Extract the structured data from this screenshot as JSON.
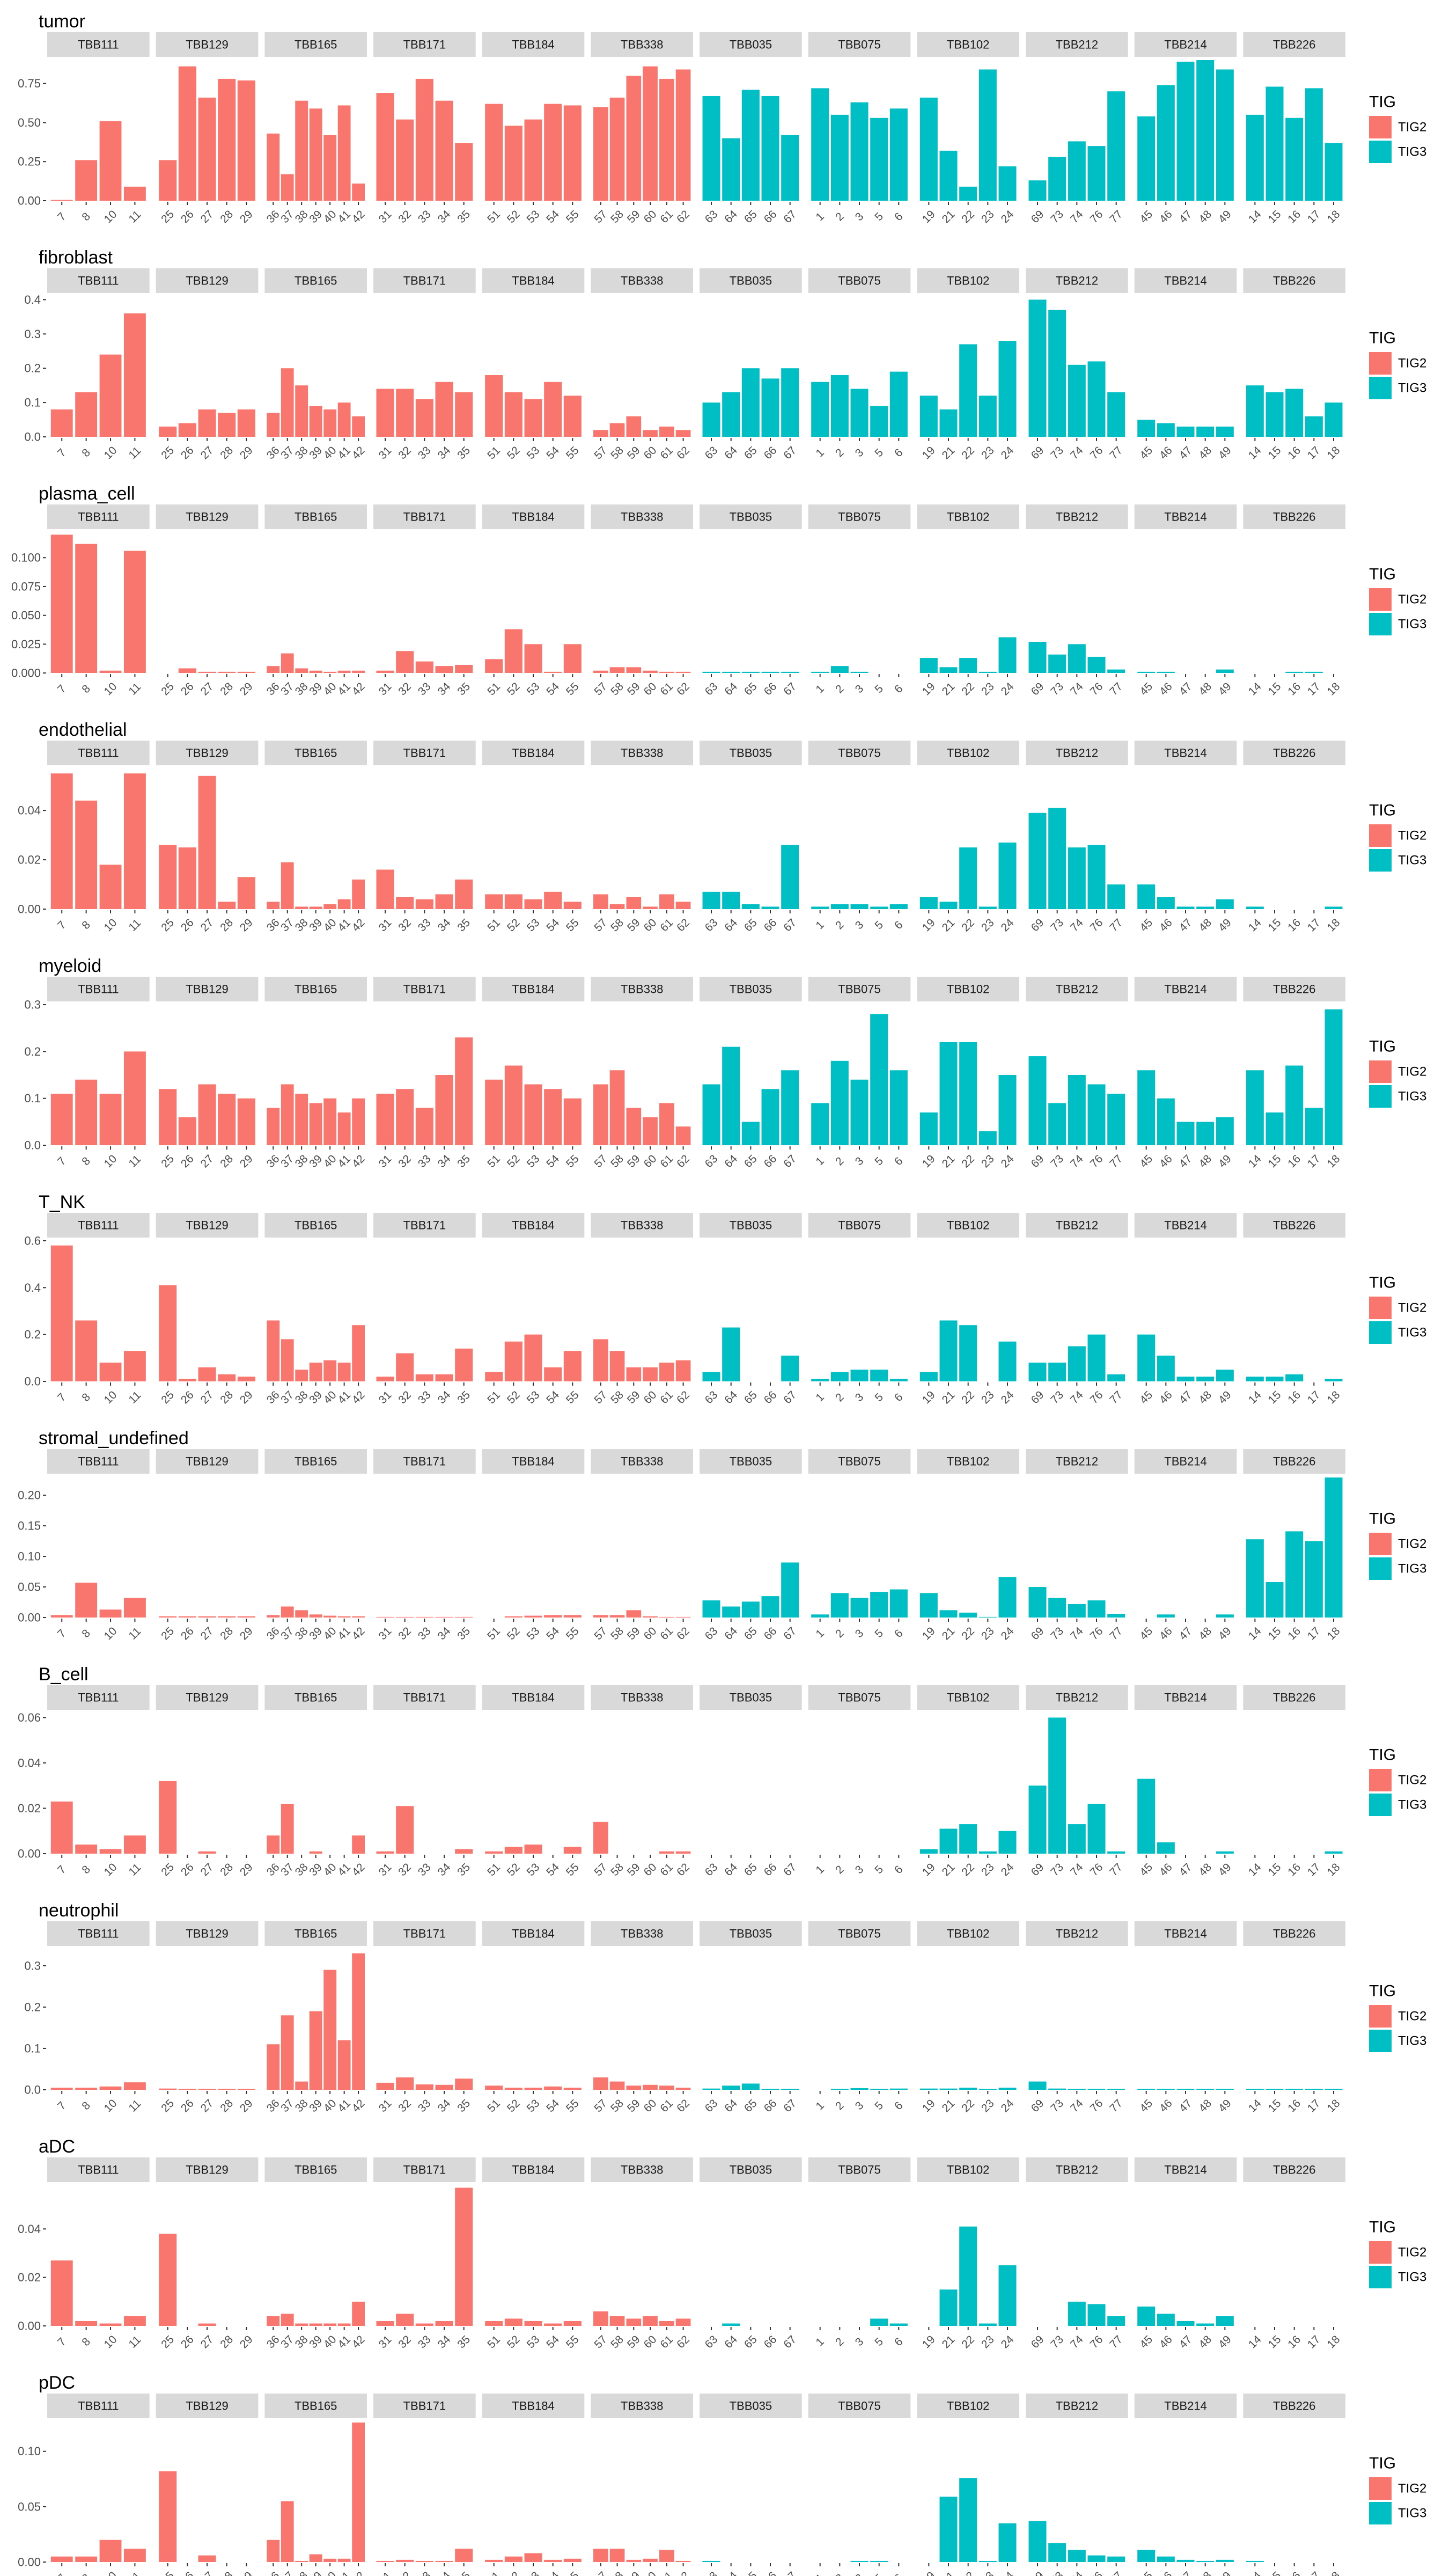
{
  "legend": {
    "title": "TIG",
    "items": [
      {
        "label": "TIG2",
        "color": "#F8766D"
      },
      {
        "label": "TIG3",
        "color": "#00BFC4"
      }
    ]
  },
  "panels": [
    {
      "name": "TBB111",
      "group": "TIG2",
      "x": [
        "7",
        "8",
        "10",
        "11"
      ]
    },
    {
      "name": "TBB129",
      "group": "TIG2",
      "x": [
        "25",
        "26",
        "27",
        "28",
        "29"
      ]
    },
    {
      "name": "TBB165",
      "group": "TIG2",
      "x": [
        "36",
        "37",
        "38",
        "39",
        "40",
        "41",
        "42"
      ]
    },
    {
      "name": "TBB171",
      "group": "TIG2",
      "x": [
        "31",
        "32",
        "33",
        "34",
        "35"
      ]
    },
    {
      "name": "TBB184",
      "group": "TIG2",
      "x": [
        "51",
        "52",
        "53",
        "54",
        "55"
      ]
    },
    {
      "name": "TBB338",
      "group": "TIG2",
      "x": [
        "57",
        "58",
        "59",
        "60",
        "61",
        "62"
      ]
    },
    {
      "name": "TBB035",
      "group": "TIG3",
      "x": [
        "63",
        "64",
        "65",
        "66",
        "67"
      ]
    },
    {
      "name": "TBB075",
      "group": "TIG3",
      "x": [
        "1",
        "2",
        "3",
        "5",
        "6"
      ]
    },
    {
      "name": "TBB102",
      "group": "TIG3",
      "x": [
        "19",
        "21",
        "22",
        "23",
        "24"
      ]
    },
    {
      "name": "TBB212",
      "group": "TIG3",
      "x": [
        "69",
        "73",
        "74",
        "76",
        "77"
      ]
    },
    {
      "name": "TBB214",
      "group": "TIG3",
      "x": [
        "45",
        "46",
        "47",
        "48",
        "49"
      ]
    },
    {
      "name": "TBB226",
      "group": "TIG3",
      "x": [
        "14",
        "15",
        "16",
        "17",
        "18"
      ]
    }
  ],
  "chart_data": [
    {
      "type": "bar",
      "title": "tumor",
      "yticks": [
        0,
        0.25,
        0.5,
        0.75
      ],
      "ytick_labels": [
        "0.00",
        "0.25",
        "0.50",
        "0.75"
      ],
      "ylim": [
        0,
        0.9
      ],
      "values": [
        [
          0.005,
          0.26,
          0.51,
          0.09
        ],
        [
          0.26,
          0.86,
          0.66,
          0.78,
          0.77
        ],
        [
          0.43,
          0.17,
          0.64,
          0.59,
          0.42,
          0.61,
          0.11
        ],
        [
          0.69,
          0.52,
          0.78,
          0.64,
          0.37
        ],
        [
          0.62,
          0.48,
          0.52,
          0.62,
          0.61
        ],
        [
          0.6,
          0.66,
          0.8,
          0.86,
          0.78,
          0.84
        ],
        [
          0.67,
          0.4,
          0.71,
          0.67,
          0.42
        ],
        [
          0.72,
          0.55,
          0.63,
          0.53,
          0.59
        ],
        [
          0.66,
          0.32,
          0.09,
          0.84,
          0.22
        ],
        [
          0.13,
          0.28,
          0.38,
          0.35,
          0.7
        ],
        [
          0.54,
          0.74,
          0.89,
          0.9,
          0.84
        ],
        [
          0.55,
          0.73,
          0.53,
          0.72,
          0.37
        ]
      ]
    },
    {
      "type": "bar",
      "title": "fibroblast",
      "yticks": [
        0,
        0.1,
        0.2,
        0.3,
        0.4
      ],
      "ytick_labels": [
        "0.0",
        "0.1",
        "0.2",
        "0.3",
        "0.4"
      ],
      "ylim": [
        0,
        0.41
      ],
      "values": [
        [
          0.08,
          0.13,
          0.24,
          0.36
        ],
        [
          0.03,
          0.04,
          0.08,
          0.07,
          0.08
        ],
        [
          0.07,
          0.2,
          0.15,
          0.09,
          0.08,
          0.1,
          0.06
        ],
        [
          0.14,
          0.14,
          0.11,
          0.16,
          0.13
        ],
        [
          0.18,
          0.13,
          0.11,
          0.16,
          0.12
        ],
        [
          0.02,
          0.04,
          0.06,
          0.02,
          0.03,
          0.02
        ],
        [
          0.1,
          0.13,
          0.2,
          0.17,
          0.2
        ],
        [
          0.16,
          0.18,
          0.14,
          0.09,
          0.19
        ],
        [
          0.12,
          0.08,
          0.27,
          0.12,
          0.28
        ],
        [
          0.4,
          0.37,
          0.21,
          0.22,
          0.13
        ],
        [
          0.05,
          0.04,
          0.03,
          0.03,
          0.03
        ],
        [
          0.15,
          0.13,
          0.14,
          0.06,
          0.1
        ]
      ]
    },
    {
      "type": "bar",
      "title": "plasma_cell",
      "yticks": [
        0,
        0.025,
        0.05,
        0.075,
        0.1
      ],
      "ytick_labels": [
        "0.000",
        "0.025",
        "0.050",
        "0.075",
        "0.100"
      ],
      "ylim": [
        0,
        0.122
      ],
      "values": [
        [
          0.12,
          0.112,
          0.002,
          0.106
        ],
        [
          0.0,
          0.004,
          0.001,
          0.001,
          0.001
        ],
        [
          0.006,
          0.017,
          0.004,
          0.002,
          0.001,
          0.002,
          0.002
        ],
        [
          0.002,
          0.019,
          0.01,
          0.006,
          0.007
        ],
        [
          0.012,
          0.038,
          0.025,
          0.001,
          0.025
        ],
        [
          0.002,
          0.005,
          0.005,
          0.002,
          0.001,
          0.001
        ],
        [
          0.001,
          0.001,
          0.001,
          0.001,
          0.001
        ],
        [
          0.001,
          0.006,
          0.001,
          0.0,
          0.0
        ],
        [
          0.013,
          0.005,
          0.013,
          0.001,
          0.031
        ],
        [
          0.027,
          0.016,
          0.025,
          0.014,
          0.003
        ],
        [
          0.001,
          0.001,
          0.0,
          0.0,
          0.003
        ],
        [
          0.0,
          0.0,
          0.001,
          0.001,
          0.0
        ]
      ]
    },
    {
      "type": "bar",
      "title": "endothelial",
      "yticks": [
        0,
        0.02,
        0.04
      ],
      "ytick_labels": [
        "0.00",
        "0.02",
        "0.04"
      ],
      "ylim": [
        0,
        0.057
      ],
      "values": [
        [
          0.055,
          0.044,
          0.018,
          0.055
        ],
        [
          0.026,
          0.025,
          0.054,
          0.003,
          0.013
        ],
        [
          0.003,
          0.019,
          0.001,
          0.001,
          0.002,
          0.004,
          0.012
        ],
        [
          0.016,
          0.005,
          0.004,
          0.006,
          0.012
        ],
        [
          0.006,
          0.006,
          0.004,
          0.007,
          0.003
        ],
        [
          0.006,
          0.002,
          0.005,
          0.001,
          0.006,
          0.003
        ],
        [
          0.007,
          0.007,
          0.002,
          0.001,
          0.026
        ],
        [
          0.001,
          0.002,
          0.002,
          0.001,
          0.002
        ],
        [
          0.005,
          0.003,
          0.025,
          0.001,
          0.027
        ],
        [
          0.039,
          0.041,
          0.025,
          0.026,
          0.01
        ],
        [
          0.01,
          0.005,
          0.001,
          0.001,
          0.004
        ],
        [
          0.001,
          0.0,
          0.0,
          0.0,
          0.001
        ]
      ]
    },
    {
      "type": "bar",
      "title": "myeloid",
      "yticks": [
        0,
        0.1,
        0.2,
        0.3
      ],
      "ytick_labels": [
        "0.0",
        "0.1",
        "0.2",
        "0.3"
      ],
      "ylim": [
        0,
        0.3
      ],
      "values": [
        [
          0.11,
          0.14,
          0.11,
          0.2
        ],
        [
          0.12,
          0.06,
          0.13,
          0.11,
          0.1
        ],
        [
          0.08,
          0.13,
          0.11,
          0.09,
          0.1,
          0.07,
          0.1
        ],
        [
          0.11,
          0.12,
          0.08,
          0.15,
          0.23
        ],
        [
          0.14,
          0.17,
          0.13,
          0.12,
          0.1
        ],
        [
          0.13,
          0.16,
          0.08,
          0.06,
          0.09,
          0.04
        ],
        [
          0.13,
          0.21,
          0.05,
          0.12,
          0.16
        ],
        [
          0.09,
          0.18,
          0.14,
          0.28,
          0.16
        ],
        [
          0.07,
          0.22,
          0.22,
          0.03,
          0.15
        ],
        [
          0.19,
          0.09,
          0.15,
          0.13,
          0.11
        ],
        [
          0.16,
          0.1,
          0.05,
          0.05,
          0.06
        ],
        [
          0.16,
          0.07,
          0.17,
          0.08,
          0.29
        ]
      ]
    },
    {
      "type": "bar",
      "title": "T_NK",
      "yticks": [
        0,
        0.2,
        0.4,
        0.6
      ],
      "ytick_labels": [
        "0.0",
        "0.2",
        "0.4",
        "0.6"
      ],
      "ylim": [
        0,
        0.6
      ],
      "values": [
        [
          0.58,
          0.26,
          0.08,
          0.13
        ],
        [
          0.41,
          0.01,
          0.06,
          0.03,
          0.02
        ],
        [
          0.26,
          0.18,
          0.05,
          0.08,
          0.09,
          0.08,
          0.24
        ],
        [
          0.02,
          0.12,
          0.03,
          0.03,
          0.14
        ],
        [
          0.04,
          0.17,
          0.2,
          0.06,
          0.13
        ],
        [
          0.18,
          0.13,
          0.06,
          0.06,
          0.08,
          0.09
        ],
        [
          0.04,
          0.23,
          0.0,
          0.0,
          0.11
        ],
        [
          0.01,
          0.04,
          0.05,
          0.05,
          0.01
        ],
        [
          0.04,
          0.26,
          0.24,
          0.0,
          0.17
        ],
        [
          0.08,
          0.08,
          0.15,
          0.2,
          0.03
        ],
        [
          0.2,
          0.11,
          0.02,
          0.02,
          0.05
        ],
        [
          0.02,
          0.02,
          0.03,
          0.0,
          0.01
        ]
      ]
    },
    {
      "type": "bar",
      "title": "stromal_undefined",
      "yticks": [
        0,
        0.05,
        0.1,
        0.15,
        0.2
      ],
      "ytick_labels": [
        "0.00",
        "0.05",
        "0.10",
        "0.15",
        "0.20"
      ],
      "ylim": [
        0,
        0.23
      ],
      "values": [
        [
          0.004,
          0.057,
          0.013,
          0.032
        ],
        [
          0.002,
          0.002,
          0.002,
          0.002,
          0.002
        ],
        [
          0.004,
          0.018,
          0.012,
          0.005,
          0.003,
          0.002,
          0.002
        ],
        [
          0.001,
          0.001,
          0.001,
          0.001,
          0.001
        ],
        [
          0.0,
          0.002,
          0.003,
          0.004,
          0.004
        ],
        [
          0.004,
          0.004,
          0.012,
          0.002,
          0.001,
          0.001
        ],
        [
          0.028,
          0.018,
          0.026,
          0.035,
          0.09
        ],
        [
          0.005,
          0.04,
          0.032,
          0.042,
          0.046
        ],
        [
          0.04,
          0.012,
          0.008,
          0.001,
          0.066
        ],
        [
          0.05,
          0.032,
          0.022,
          0.028,
          0.006
        ],
        [
          0.0,
          0.005,
          0.0,
          0.0,
          0.005
        ],
        [
          0.128,
          0.058,
          0.141,
          0.125,
          0.229
        ]
      ]
    },
    {
      "type": "bar",
      "title": "B_cell",
      "yticks": [
        0,
        0.02,
        0.04,
        0.06
      ],
      "ytick_labels": [
        "0.00",
        "0.02",
        "0.04",
        "0.06"
      ],
      "ylim": [
        0,
        0.062
      ],
      "values": [
        [
          0.023,
          0.004,
          0.002,
          0.008
        ],
        [
          0.032,
          0.0,
          0.001,
          0.0,
          0.0
        ],
        [
          0.008,
          0.022,
          0.0,
          0.001,
          0.0,
          0.0,
          0.008
        ],
        [
          0.001,
          0.021,
          0.0,
          0.0,
          0.002
        ],
        [
          0.001,
          0.003,
          0.004,
          0.0,
          0.003
        ],
        [
          0.014,
          0.0,
          0.0,
          0.0,
          0.001,
          0.001
        ],
        [
          0.0,
          0.0,
          0.0,
          0.0,
          0.0
        ],
        [
          0.0,
          0.0,
          0.0,
          0.0,
          0.0
        ],
        [
          0.002,
          0.011,
          0.013,
          0.001,
          0.01
        ],
        [
          0.03,
          0.06,
          0.013,
          0.022,
          0.001
        ],
        [
          0.033,
          0.005,
          0.0,
          0.0,
          0.001
        ],
        [
          0.0,
          0.0,
          0.0,
          0.0,
          0.001
        ]
      ]
    },
    {
      "type": "bar",
      "title": "neutrophil",
      "yticks": [
        0,
        0.1,
        0.2,
        0.3
      ],
      "ytick_labels": [
        "0.0",
        "0.1",
        "0.2",
        "0.3"
      ],
      "ylim": [
        0,
        0.34
      ],
      "values": [
        [
          0.005,
          0.005,
          0.008,
          0.018
        ],
        [
          0.003,
          0.002,
          0.002,
          0.002,
          0.002
        ],
        [
          0.11,
          0.18,
          0.02,
          0.19,
          0.29,
          0.12,
          0.33
        ],
        [
          0.017,
          0.03,
          0.013,
          0.012,
          0.027
        ],
        [
          0.01,
          0.005,
          0.005,
          0.008,
          0.005
        ],
        [
          0.03,
          0.02,
          0.01,
          0.012,
          0.01,
          0.005
        ],
        [
          0.003,
          0.01,
          0.015,
          0.002,
          0.002
        ],
        [
          0.0,
          0.002,
          0.004,
          0.002,
          0.003
        ],
        [
          0.003,
          0.003,
          0.005,
          0.002,
          0.005
        ],
        [
          0.02,
          0.003,
          0.002,
          0.002,
          0.002
        ],
        [
          0.002,
          0.002,
          0.002,
          0.002,
          0.002
        ],
        [
          0.002,
          0.002,
          0.002,
          0.002,
          0.002
        ]
      ]
    },
    {
      "type": "bar",
      "title": "aDC",
      "yticks": [
        0,
        0.02,
        0.04
      ],
      "ytick_labels": [
        "0.00",
        "0.02",
        "0.04"
      ],
      "ylim": [
        0,
        0.058
      ],
      "values": [
        [
          0.027,
          0.002,
          0.001,
          0.004
        ],
        [
          0.038,
          0.0,
          0.001,
          0.0,
          0.0
        ],
        [
          0.004,
          0.005,
          0.001,
          0.001,
          0.001,
          0.001,
          0.01
        ],
        [
          0.002,
          0.005,
          0.001,
          0.002,
          0.057
        ],
        [
          0.002,
          0.003,
          0.002,
          0.001,
          0.002
        ],
        [
          0.006,
          0.004,
          0.003,
          0.004,
          0.002,
          0.003
        ],
        [
          0.0,
          0.001,
          0.0,
          0.0,
          0.0
        ],
        [
          0.0,
          0.0,
          0.0,
          0.003,
          0.001
        ],
        [
          0.0,
          0.015,
          0.041,
          0.001,
          0.025
        ],
        [
          0.0,
          0.0,
          0.01,
          0.009,
          0.004
        ],
        [
          0.008,
          0.005,
          0.002,
          0.001,
          0.004
        ],
        [
          0.0,
          0.0,
          0.0,
          0.0,
          0.0
        ]
      ]
    },
    {
      "type": "bar",
      "title": "pDC",
      "yticks": [
        0,
        0.05,
        0.1
      ],
      "ytick_labels": [
        "0.00",
        "0.05",
        "0.10"
      ],
      "ylim": [
        0,
        0.127
      ],
      "values": [
        [
          0.005,
          0.005,
          0.02,
          0.012
        ],
        [
          0.082,
          0.0,
          0.006,
          0.0,
          0.0
        ],
        [
          0.02,
          0.055,
          0.001,
          0.007,
          0.003,
          0.003,
          0.126
        ],
        [
          0.001,
          0.002,
          0.001,
          0.001,
          0.012
        ],
        [
          0.002,
          0.005,
          0.008,
          0.002,
          0.003
        ],
        [
          0.012,
          0.012,
          0.002,
          0.003,
          0.011,
          0.001
        ],
        [
          0.001,
          0.0,
          0.0,
          0.0,
          0.0
        ],
        [
          0.0,
          0.0,
          0.001,
          0.001,
          0.0
        ],
        [
          0.0,
          0.059,
          0.076,
          0.001,
          0.035
        ],
        [
          0.037,
          0.017,
          0.011,
          0.006,
          0.005
        ],
        [
          0.011,
          0.005,
          0.002,
          0.001,
          0.002
        ],
        [
          0.001,
          0.0,
          0.0,
          0.0,
          0.0
        ]
      ]
    }
  ]
}
